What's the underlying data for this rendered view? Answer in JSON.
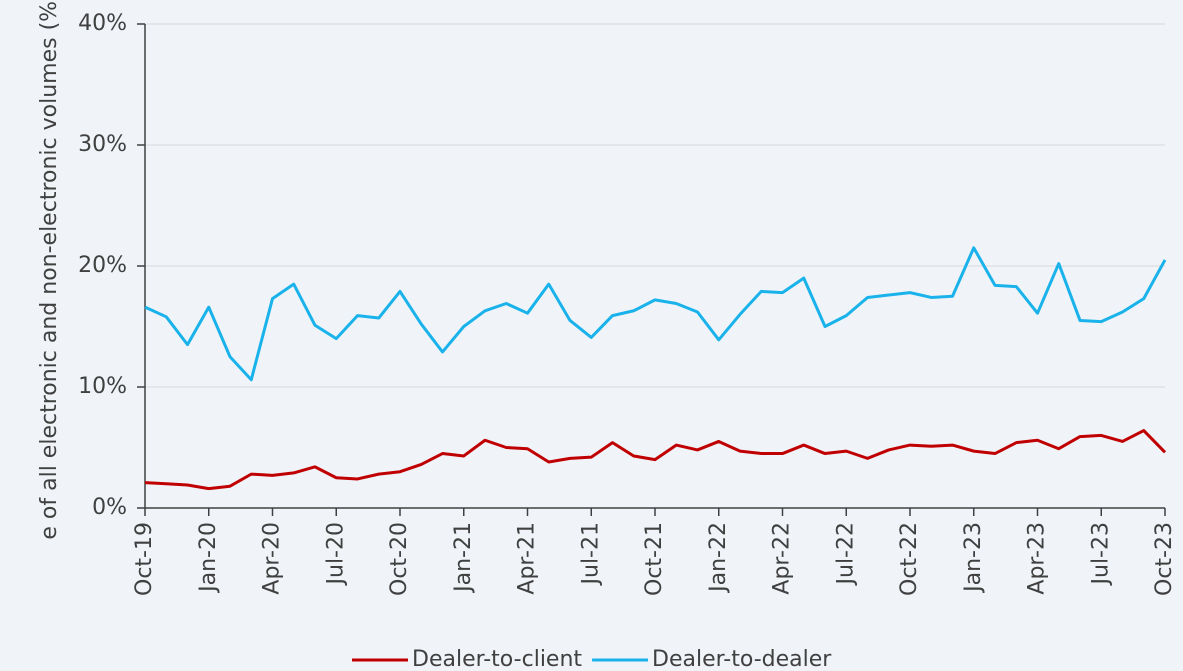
{
  "chart_data": {
    "type": "line",
    "y_label": "e of all electronic and non-electronic volumes (%)",
    "categories": [
      "Oct-19",
      null,
      null,
      "Jan-20",
      null,
      null,
      "Apr-20",
      null,
      null,
      "Jul-20",
      null,
      null,
      "Oct-20",
      null,
      null,
      "Jan-21",
      null,
      null,
      "Apr-21",
      null,
      null,
      "Jul-21",
      null,
      null,
      "Oct-21",
      null,
      null,
      "Jan-22",
      null,
      null,
      "Apr-22",
      null,
      null,
      "Jul-22",
      null,
      null,
      "Oct-22",
      null,
      null,
      "Jan-23",
      null,
      null,
      "Apr-23",
      null,
      null,
      "Jul-23",
      null,
      null,
      "Oct-23"
    ],
    "series": [
      {
        "name": "Dealer-to-client",
        "color": "#c00000",
        "values": [
          2.1,
          2.0,
          1.9,
          1.6,
          1.8,
          2.8,
          2.7,
          2.9,
          3.4,
          2.5,
          2.4,
          2.8,
          3.0,
          3.6,
          4.5,
          4.3,
          5.6,
          5.0,
          4.9,
          3.8,
          4.1,
          4.2,
          5.4,
          4.3,
          4.0,
          5.2,
          4.8,
          5.5,
          4.7,
          4.5,
          4.5,
          5.2,
          4.5,
          4.7,
          4.1,
          4.8,
          5.2,
          5.1,
          5.2,
          4.7,
          4.5,
          5.4,
          5.6,
          4.9,
          5.9,
          6.0,
          5.5,
          6.4,
          4.6
        ]
      },
      {
        "name": "Dealer-to-dealer",
        "color": "#1ab2ea",
        "values": [
          16.6,
          15.8,
          13.5,
          16.6,
          12.5,
          10.6,
          17.3,
          18.5,
          15.1,
          14.0,
          15.9,
          15.7,
          17.9,
          15.2,
          12.9,
          15.0,
          16.3,
          16.9,
          16.1,
          18.5,
          15.5,
          14.1,
          15.9,
          16.3,
          17.2,
          16.9,
          16.2,
          13.9,
          16.0,
          17.9,
          17.8,
          19.0,
          15.0,
          15.9,
          17.4,
          17.6,
          17.8,
          17.4,
          17.5,
          21.5,
          18.4,
          18.3,
          16.1,
          20.2,
          15.5,
          15.4,
          16.2,
          17.3,
          20.5
        ]
      }
    ],
    "ylim": [
      0,
      40
    ],
    "yticks": [
      {
        "value": 0,
        "label": "0%"
      },
      {
        "value": 10,
        "label": "10%"
      },
      {
        "value": 20,
        "label": "20%"
      },
      {
        "value": 30,
        "label": "30%"
      },
      {
        "value": 40,
        "label": "40%"
      }
    ],
    "grid": true,
    "legend": "bottom"
  }
}
